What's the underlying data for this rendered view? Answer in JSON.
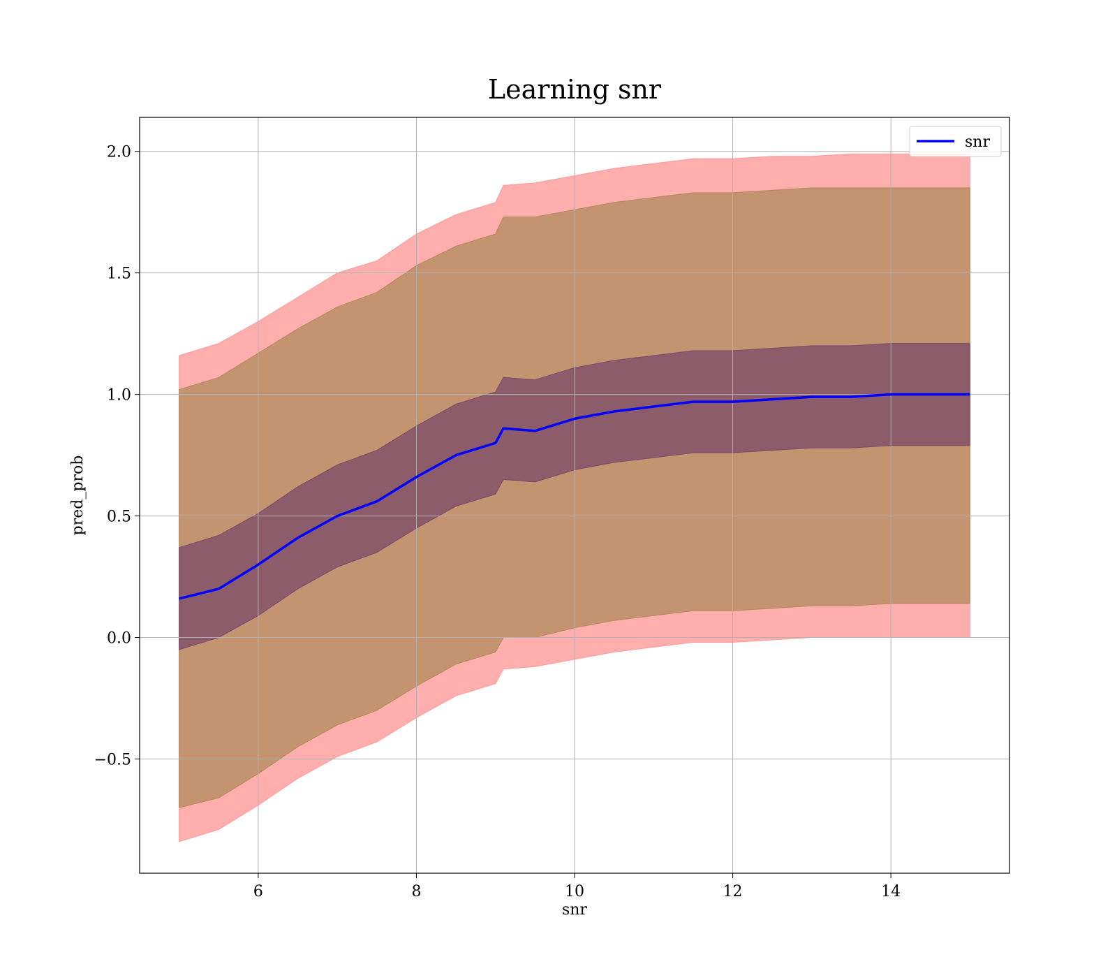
{
  "chart_data": {
    "type": "line",
    "title": "Learning snr",
    "xlabel": "snr",
    "ylabel": "pred_prob",
    "xlim": [
      4.5,
      15.5
    ],
    "ylim": [
      -0.97,
      2.14
    ],
    "xticks": [
      6,
      8,
      10,
      12,
      14
    ],
    "xtick_labels": [
      "6",
      "8",
      "10",
      "12",
      "14"
    ],
    "yticks": [
      -0.5,
      0.0,
      0.5,
      1.0,
      1.5,
      2.0
    ],
    "ytick_labels": [
      "−0.5",
      "0.0",
      "0.5",
      "1.0",
      "1.5",
      "2.0"
    ],
    "grid": true,
    "legend": {
      "position": "top-right",
      "entries": [
        "snr"
      ]
    },
    "colors": {
      "mean_line": "#0000ff",
      "outer_band": "#ff9a9a",
      "middle_band": "#b08a5a",
      "inner_band": "#7a4a6a",
      "grid": "#b0b0b0",
      "frame": "#000000"
    },
    "x": [
      5.0,
      5.5,
      6.0,
      6.5,
      7.0,
      7.5,
      8.0,
      8.5,
      9.0,
      9.1,
      9.5,
      10.0,
      10.5,
      11.0,
      11.5,
      12.0,
      12.5,
      13.0,
      13.5,
      14.0,
      14.5,
      15.0
    ],
    "series": [
      {
        "name": "snr",
        "values": [
          0.16,
          0.2,
          0.3,
          0.41,
          0.5,
          0.56,
          0.66,
          0.75,
          0.8,
          0.86,
          0.85,
          0.9,
          0.93,
          0.95,
          0.97,
          0.97,
          0.98,
          0.99,
          0.99,
          1.0,
          1.0,
          1.0
        ]
      }
    ],
    "bands": [
      {
        "level": "outer",
        "upper": [
          1.16,
          1.21,
          1.3,
          1.4,
          1.5,
          1.55,
          1.66,
          1.74,
          1.79,
          1.86,
          1.87,
          1.9,
          1.93,
          1.95,
          1.97,
          1.97,
          1.98,
          1.98,
          1.99,
          1.99,
          1.99,
          1.99
        ],
        "lower": [
          -0.84,
          -0.79,
          -0.69,
          -0.58,
          -0.49,
          -0.43,
          -0.33,
          -0.24,
          -0.19,
          -0.13,
          -0.12,
          -0.09,
          -0.06,
          -0.04,
          -0.02,
          -0.02,
          -0.01,
          0.0,
          0.0,
          0.0,
          0.0,
          0.0
        ]
      },
      {
        "level": "middle",
        "upper": [
          1.02,
          1.07,
          1.17,
          1.27,
          1.36,
          1.42,
          1.53,
          1.61,
          1.66,
          1.73,
          1.73,
          1.76,
          1.79,
          1.81,
          1.83,
          1.83,
          1.84,
          1.85,
          1.85,
          1.85,
          1.85,
          1.85
        ],
        "lower": [
          -0.7,
          -0.66,
          -0.56,
          -0.45,
          -0.36,
          -0.3,
          -0.2,
          -0.11,
          -0.06,
          0.0,
          0.0,
          0.04,
          0.07,
          0.09,
          0.11,
          0.11,
          0.12,
          0.13,
          0.13,
          0.14,
          0.14,
          0.14
        ]
      },
      {
        "level": "inner",
        "upper": [
          0.37,
          0.42,
          0.51,
          0.62,
          0.71,
          0.77,
          0.87,
          0.96,
          1.01,
          1.07,
          1.06,
          1.11,
          1.14,
          1.16,
          1.18,
          1.18,
          1.19,
          1.2,
          1.2,
          1.21,
          1.21,
          1.21
        ],
        "lower": [
          -0.05,
          0.0,
          0.09,
          0.2,
          0.29,
          0.35,
          0.45,
          0.54,
          0.59,
          0.65,
          0.64,
          0.69,
          0.72,
          0.74,
          0.76,
          0.76,
          0.77,
          0.78,
          0.78,
          0.79,
          0.79,
          0.79
        ]
      }
    ]
  }
}
